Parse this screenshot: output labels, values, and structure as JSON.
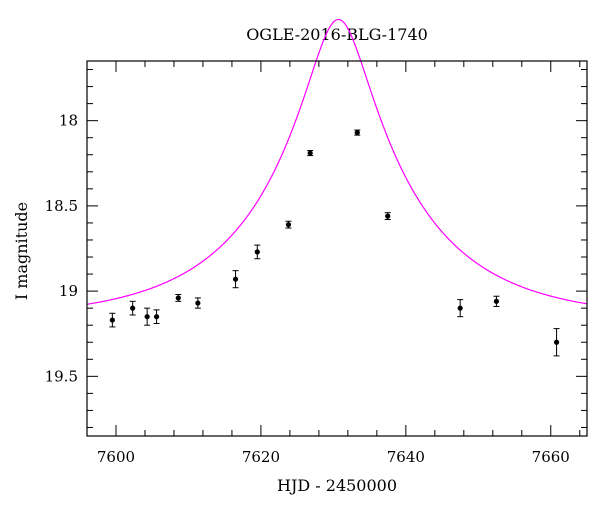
{
  "chart_data": {
    "type": "scatter",
    "title": "OGLE-2016-BLG-1740",
    "xlabel": "HJD - 2450000",
    "ylabel": "I magnitude",
    "xlim": [
      7596,
      7665
    ],
    "ylim": [
      19.85,
      17.65
    ],
    "y_inverted": true,
    "x_ticks_major": [
      7600,
      7620,
      7640,
      7660
    ],
    "x_tick_labels": [
      "7600",
      "7620",
      "7640",
      "7660"
    ],
    "x_ticks_minor_step": 4,
    "y_ticks_major": [
      18,
      18.5,
      19,
      19.5
    ],
    "y_tick_labels": [
      "18",
      "18.5",
      "19",
      "19.5"
    ],
    "y_ticks_minor_step": 0.1,
    "grid": false,
    "colors": {
      "model": "#ff00ff",
      "points": "#000000",
      "frame": "#000000"
    },
    "series": [
      {
        "kind": "points_with_errorbars",
        "x": [
          7599.5,
          7602.3,
          7604.3,
          7605.6,
          7608.6,
          7611.3,
          7616.5,
          7619.5,
          7623.8,
          7626.8,
          7633.3,
          7637.5,
          7647.5,
          7652.5,
          7660.8
        ],
        "y": [
          19.17,
          19.1,
          19.15,
          19.15,
          19.04,
          19.07,
          18.93,
          18.77,
          18.61,
          18.19,
          18.07,
          18.56,
          19.1,
          19.06,
          19.3
        ],
        "err": [
          0.04,
          0.04,
          0.05,
          0.04,
          0.02,
          0.03,
          0.05,
          0.04,
          0.02,
          0.015,
          0.015,
          0.02,
          0.05,
          0.03,
          0.08
        ]
      },
      {
        "kind": "model_curve",
        "t0": 7630.7,
        "u0": 0.2,
        "tE": 20,
        "baseline_mag": 19.17
      }
    ]
  }
}
